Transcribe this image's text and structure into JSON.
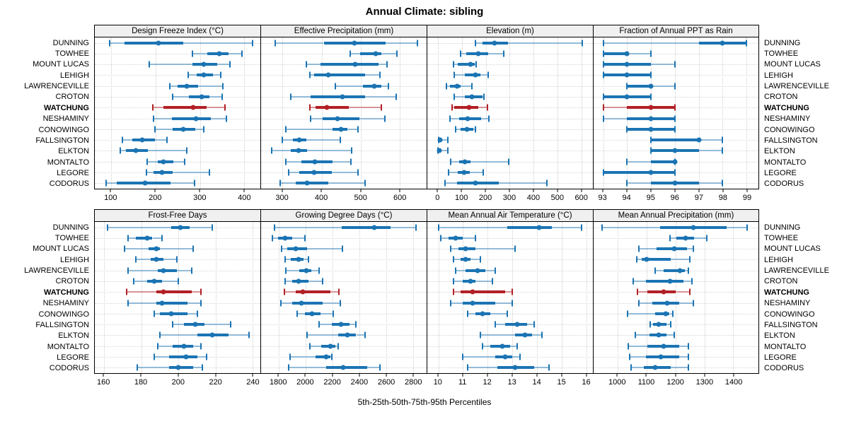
{
  "title": "Annual Climate: sibling",
  "caption": "5th-25th-50th-75th-95th Percentiles",
  "colors": {
    "normal": "#1B74B3",
    "normal_light": "rgba(27,116,179,0.45)",
    "highlight": "#B22025",
    "highlight_light": "rgba(178,32,37,0.45)",
    "strip_bg": "#F0F0F0",
    "panel_border": "#000000",
    "grid": "#CFCFCF"
  },
  "chart_data": {
    "type": "scatter",
    "mark": "median-dot-with-percentile-whiskers",
    "percentiles": [
      5,
      25,
      50,
      75,
      95
    ],
    "grid": "dotted",
    "layout": {
      "rows": 2,
      "cols": 4
    },
    "highlight_category": "WATCHUNG",
    "categories": [
      "DUNNING",
      "TOWHEE",
      "MOUNT LUCAS",
      "LEHIGH",
      "LAWRENCEVILLE",
      "CROTON",
      "WATCHUNG",
      "NESHAMINY",
      "CONOWINGO",
      "FALLSINGTON",
      "ELKTON",
      "MONTALTO",
      "LEGORE",
      "CODORUS"
    ],
    "panels": [
      {
        "title": "Design Freeze Index (°C)",
        "xlim": [
          63,
          436
        ],
        "xticks": [
          100,
          200,
          300,
          400
        ],
        "values": [
          [
            97,
            130,
            207,
            262,
            418
          ],
          [
            283,
            317,
            344,
            365,
            395
          ],
          [
            185,
            283,
            308,
            338,
            368
          ],
          [
            273,
            293,
            308,
            329,
            347
          ],
          [
            232,
            250,
            271,
            296,
            352
          ],
          [
            239,
            275,
            303,
            322,
            350
          ],
          [
            194,
            218,
            285,
            315,
            357
          ],
          [
            196,
            237,
            291,
            324,
            360
          ],
          [
            198,
            239,
            262,
            289,
            308
          ],
          [
            125,
            147,
            170,
            199,
            226
          ],
          [
            120,
            133,
            156,
            183,
            270
          ],
          [
            181,
            205,
            218,
            240,
            266
          ],
          [
            179,
            196,
            215,
            238,
            322
          ],
          [
            89,
            112,
            176,
            234,
            288
          ]
        ]
      },
      {
        "title": "Effective Precipitation (mm)",
        "xlim": [
          245,
          668
        ],
        "xticks": [
          300,
          400,
          500,
          600
        ],
        "values": [
          [
            282,
            405,
            483,
            563,
            645
          ],
          [
            473,
            498,
            538,
            552,
            592
          ],
          [
            360,
            396,
            485,
            545,
            566
          ],
          [
            369,
            381,
            417,
            510,
            548
          ],
          [
            435,
            505,
            535,
            553,
            570
          ],
          [
            321,
            372,
            452,
            510,
            590
          ],
          [
            369,
            384,
            414,
            470,
            553
          ],
          [
            372,
            402,
            441,
            497,
            562
          ],
          [
            309,
            428,
            450,
            465,
            492
          ],
          [
            300,
            327,
            342,
            360,
            447
          ],
          [
            273,
            321,
            340,
            363,
            477
          ],
          [
            309,
            348,
            383,
            428,
            474
          ],
          [
            315,
            342,
            380,
            426,
            492
          ],
          [
            294,
            333,
            363,
            417,
            510
          ]
        ]
      },
      {
        "title": "Elevation (m)",
        "xlim": [
          -45,
          648
        ],
        "xticks": [
          0,
          100,
          200,
          300,
          400,
          500,
          600
        ],
        "values": [
          [
            157,
            186,
            235,
            294,
            603
          ],
          [
            93,
            118,
            167,
            211,
            275
          ],
          [
            64,
            83,
            137,
            152,
            158
          ],
          [
            69,
            113,
            157,
            176,
            209
          ],
          [
            34,
            49,
            78,
            93,
            142
          ],
          [
            67,
            113,
            142,
            186,
            191
          ],
          [
            59,
            69,
            130,
            167,
            206
          ],
          [
            49,
            88,
            123,
            181,
            214
          ],
          [
            72,
            93,
            121,
            147,
            157
          ],
          [
            1,
            2,
            7,
            15,
            42
          ],
          [
            0,
            1,
            4,
            10,
            42
          ],
          [
            54,
            88,
            111,
            137,
            297
          ],
          [
            44,
            83,
            108,
            132,
            189
          ],
          [
            29,
            78,
            157,
            255,
            456
          ]
        ]
      },
      {
        "title": "Fraction of Annual PPT as Rain",
        "xlim": [
          92.6,
          99.5
        ],
        "xticks": [
          93,
          94,
          95,
          96,
          97,
          98,
          99
        ],
        "values": [
          [
            93,
            97,
            98,
            99,
            99
          ],
          [
            93,
            93,
            94,
            94,
            95
          ],
          [
            93,
            93,
            94,
            95,
            96
          ],
          [
            93,
            93,
            94,
            95,
            95
          ],
          [
            94,
            94,
            95,
            95,
            96
          ],
          [
            93,
            93,
            94,
            95,
            95
          ],
          [
            93,
            94,
            95,
            96,
            96
          ],
          [
            93,
            94,
            95,
            96,
            96
          ],
          [
            94,
            94,
            95,
            96,
            96
          ],
          [
            95,
            95,
            97,
            97,
            98
          ],
          [
            95,
            95,
            96,
            97,
            98
          ],
          [
            94,
            95,
            96,
            96,
            96
          ],
          [
            93,
            93,
            95,
            96,
            96
          ],
          [
            94,
            95,
            96,
            97,
            98
          ]
        ]
      },
      {
        "title": "Frost-Free Days",
        "xlim": [
          155,
          244
        ],
        "xticks": [
          160,
          180,
          200,
          220,
          240
        ],
        "values": [
          [
            162,
            196,
            201,
            206,
            218
          ],
          [
            173,
            177,
            183,
            186,
            191
          ],
          [
            171,
            184,
            188,
            190,
            208
          ],
          [
            177,
            185,
            188,
            192,
            199
          ],
          [
            173,
            189,
            192,
            199,
            207
          ],
          [
            176,
            183,
            187,
            191,
            200
          ],
          [
            172,
            188,
            192,
            207,
            212
          ],
          [
            173,
            188,
            191,
            205,
            212
          ],
          [
            187,
            190,
            196,
            205,
            210
          ],
          [
            197,
            203,
            209,
            214,
            228
          ],
          [
            190,
            210,
            218,
            227,
            238
          ],
          [
            189,
            197,
            203,
            208,
            212
          ],
          [
            187,
            195,
            204,
            210,
            215
          ],
          [
            178,
            195,
            200,
            208,
            213
          ]
        ]
      },
      {
        "title": "Growing Degree Days (°C)",
        "xlim": [
          1668,
          2898
        ],
        "xticks": [
          1800,
          2000,
          2200,
          2400,
          2600,
          2800
        ],
        "values": [
          [
            1770,
            2265,
            2510,
            2630,
            2820
          ],
          [
            1750,
            1795,
            1845,
            1900,
            1995
          ],
          [
            1820,
            1865,
            1925,
            2010,
            2275
          ],
          [
            1845,
            1890,
            1945,
            1985,
            2020
          ],
          [
            1850,
            1950,
            2005,
            2040,
            2100
          ],
          [
            1845,
            1900,
            1945,
            2020,
            2125
          ],
          [
            1840,
            1925,
            1980,
            2185,
            2245
          ],
          [
            1815,
            1900,
            1970,
            2125,
            2255
          ],
          [
            1935,
            1995,
            2045,
            2110,
            2205
          ],
          [
            2100,
            2195,
            2260,
            2325,
            2370
          ],
          [
            2010,
            2240,
            2310,
            2375,
            2440
          ],
          [
            2030,
            2115,
            2185,
            2220,
            2240
          ],
          [
            1885,
            2075,
            2150,
            2185,
            2195
          ],
          [
            1875,
            2150,
            2280,
            2455,
            2550
          ]
        ]
      },
      {
        "title": "Mean Annual Air Temperature (°C)",
        "xlim": [
          9.55,
          16.27
        ],
        "xticks": [
          10,
          11,
          12,
          13,
          14,
          15,
          16
        ],
        "values": [
          [
            10.0,
            12.8,
            14.1,
            14.6,
            15.8
          ],
          [
            10.1,
            10.4,
            10.7,
            11.0,
            11.5
          ],
          [
            10.5,
            10.8,
            11.1,
            11.5,
            13.1
          ],
          [
            10.6,
            10.9,
            11.1,
            11.3,
            11.7
          ],
          [
            10.7,
            11.1,
            11.6,
            11.9,
            12.3
          ],
          [
            10.6,
            11.0,
            11.3,
            11.5,
            12.2
          ],
          [
            10.6,
            10.9,
            11.4,
            12.7,
            13.0
          ],
          [
            10.5,
            11.0,
            11.4,
            12.3,
            13.0
          ],
          [
            11.2,
            11.5,
            11.8,
            12.1,
            12.8
          ],
          [
            12.3,
            12.7,
            13.2,
            13.6,
            13.9
          ],
          [
            11.7,
            13.1,
            13.5,
            13.8,
            14.2
          ],
          [
            11.8,
            12.1,
            12.6,
            12.9,
            13.2
          ],
          [
            11.0,
            12.3,
            12.7,
            13.0,
            13.3
          ],
          [
            11.2,
            12.4,
            13.1,
            13.9,
            14.5
          ]
        ]
      },
      {
        "title": "Mean Annual Precipitation (mm)",
        "xlim": [
          917,
          1487
        ],
        "xticks": [
          1000,
          1100,
          1200,
          1300,
          1400
        ],
        "values": [
          [
            947,
            1147,
            1261,
            1378,
            1447
          ],
          [
            1180,
            1204,
            1236,
            1265,
            1309
          ],
          [
            1074,
            1135,
            1196,
            1240,
            1263
          ],
          [
            1066,
            1083,
            1101,
            1184,
            1250
          ],
          [
            1131,
            1160,
            1216,
            1232,
            1245
          ],
          [
            1054,
            1099,
            1180,
            1228,
            1257
          ],
          [
            1069,
            1103,
            1159,
            1200,
            1249
          ],
          [
            1074,
            1119,
            1172,
            1212,
            1261
          ],
          [
            1034,
            1131,
            1166,
            1180,
            1192
          ],
          [
            1112,
            1122,
            1143,
            1168,
            1184
          ],
          [
            1062,
            1111,
            1143,
            1168,
            1196
          ],
          [
            1038,
            1103,
            1159,
            1212,
            1245
          ],
          [
            1042,
            1099,
            1150,
            1212,
            1245
          ],
          [
            1046,
            1091,
            1129,
            1184,
            1245
          ]
        ]
      }
    ]
  }
}
